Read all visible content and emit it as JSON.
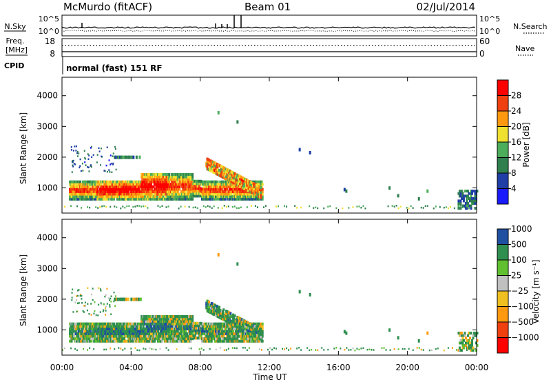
{
  "header": {
    "station": "McMurdo (fitACF)",
    "beam": "Beam 01",
    "date": "02/Jul/2014"
  },
  "noise_panel": {
    "left_label": "N.Sky",
    "right_label": "N.Search",
    "left_ticks": [
      "10^5",
      "10^0"
    ],
    "right_ticks": [
      "10^5",
      "10^0"
    ]
  },
  "freq_panel": {
    "left_label_1": "Freq.",
    "left_label_2": "[MHz]",
    "right_label": "Nave",
    "left_ticks": [
      "18",
      "8"
    ],
    "right_ticks": [
      "60",
      "0"
    ]
  },
  "cpid": {
    "label": "CPID",
    "text": "normal (fast) 151 RF"
  },
  "x_axis": {
    "title": "Time UT",
    "ticks": [
      "00:00",
      "04:00",
      "08:00",
      "12:00",
      "16:00",
      "20:00",
      "00:00"
    ]
  },
  "colors": {
    "power": [
      "#1a1aff",
      "#1f3fa6",
      "#2f7f4f",
      "#4cad5a",
      "#f0e030",
      "#ff9a10",
      "#f04010",
      "#ff0000"
    ],
    "velocity": [
      "#ff0000",
      "#f04010",
      "#ff9a10",
      "#f0c020",
      "#c0c0c0",
      "#60c030",
      "#2f8f4f",
      "#1f4fa0"
    ]
  },
  "chart_data": [
    {
      "type": "heatmap",
      "title": "",
      "ylabel": "Slant Range [km]",
      "xlabel": "",
      "x_range_hours": [
        0,
        24
      ],
      "ylim": [
        180,
        4600
      ],
      "yticks": [
        "1000",
        "2000",
        "3000",
        "4000"
      ],
      "colorbar": {
        "label": "Power [dB]",
        "ticks": [
          "4",
          "8",
          "12",
          "16",
          "20",
          "24",
          "28"
        ],
        "range": [
          0,
          30
        ]
      },
      "features": [
        {
          "hours": [
            0.4,
            11.6
          ],
          "range_km": [
            600,
            1300
          ],
          "value_db": "8–30",
          "note": "main echo band"
        },
        {
          "hours": [
            8.0,
            11.5
          ],
          "range_km": [
            700,
            2000
          ],
          "value_db": "8–28",
          "note": "descending feature"
        },
        {
          "hours": [
            3.0,
            4.5
          ],
          "range_km": [
            1900,
            2100
          ],
          "value_db": "6–10"
        },
        {
          "hours": [
            0.5,
            3.0
          ],
          "range_km": [
            1500,
            2400
          ],
          "value_db": "4–8"
        },
        {
          "hours": [
            16.2,
            16.5
          ],
          "range_km": [
            900,
            1100
          ],
          "value_db": "4–6"
        },
        {
          "hours": [
            22.9,
            24.0
          ],
          "range_km": [
            300,
            900
          ],
          "value_db": "4–8"
        },
        {
          "hours": [
            0.0,
            24.0
          ],
          "range_km": [
            180,
            280
          ],
          "value_db": "4–16",
          "note": "ground scatter near range"
        }
      ]
    },
    {
      "type": "heatmap",
      "title": "",
      "ylabel": "Slant Range [km]",
      "xlabel": "Time UT",
      "x_range_hours": [
        0,
        24
      ],
      "ylim": [
        180,
        4600
      ],
      "yticks": [
        "1000",
        "2000",
        "3000",
        "4000"
      ],
      "colorbar": {
        "label": "Velocity [m s⁻¹]",
        "ticks": [
          "1000",
          "500",
          "100",
          "25",
          "−25",
          "−100",
          "−500",
          "−1000"
        ]
      },
      "features": [
        {
          "hours": [
            0.4,
            11.6
          ],
          "range_km": [
            600,
            1300
          ],
          "value_ms": "-100 to 500",
          "note": "mostly green/orange"
        },
        {
          "hours": [
            8.0,
            11.5
          ],
          "range_km": [
            700,
            2000
          ],
          "value_ms": "100 to 1000"
        },
        {
          "hours": [
            3.0,
            4.5
          ],
          "range_km": [
            1900,
            2100
          ],
          "value_ms": "-100"
        },
        {
          "hours": [
            22.9,
            24.0
          ],
          "range_km": [
            300,
            900
          ],
          "value_ms": "100 to 1000"
        },
        {
          "hours": [
            0.0,
            24.0
          ],
          "range_km": [
            180,
            280
          ],
          "value_ms": "-25 to 25",
          "note": "ground scatter near range"
        }
      ]
    }
  ]
}
